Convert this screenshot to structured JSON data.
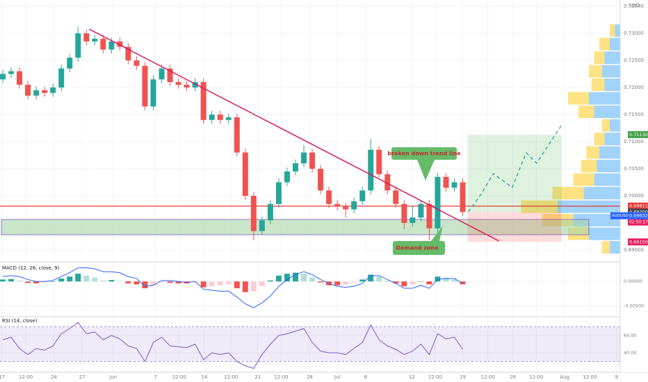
{
  "chart_data": {
    "type": "candlestick",
    "currency": "USD",
    "symbol": "AUDUSD",
    "countdown": "02:50:17",
    "open": [
      0.7215,
      0.7225,
      0.723,
      0.7205,
      0.7185,
      0.7195,
      0.719,
      0.72,
      0.7235,
      0.7255,
      0.73,
      0.7285,
      0.729,
      0.727,
      0.7285,
      0.7275,
      0.725,
      0.724,
      0.7165,
      0.7215,
      0.7235,
      0.721,
      0.7205,
      0.72,
      0.721,
      0.714,
      0.715,
      0.714,
      0.7145,
      0.708,
      0.7,
      0.6935,
      0.6955,
      0.6985,
      0.7025,
      0.7045,
      0.706,
      0.708,
      0.705,
      0.701,
      0.6985,
      0.698,
      0.6975,
      0.699,
      0.701,
      0.7085,
      0.704,
      0.701,
      0.6985,
      0.695,
      0.696,
      0.6985,
      0.694,
      0.7035,
      0.7015,
      0.7025
    ],
    "high": [
      0.7232,
      0.7237,
      0.7237,
      0.7212,
      0.7202,
      0.7202,
      0.7207,
      0.7242,
      0.7262,
      0.7312,
      0.7307,
      0.7297,
      0.7297,
      0.7292,
      0.7292,
      0.7282,
      0.7257,
      0.7247,
      0.7222,
      0.7242,
      0.7242,
      0.7217,
      0.7212,
      0.7217,
      0.7217,
      0.7157,
      0.7157,
      0.7152,
      0.7152,
      0.7087,
      0.7007,
      0.6962,
      0.6992,
      0.7032,
      0.7052,
      0.7067,
      0.7093,
      0.7087,
      0.7057,
      0.7017,
      0.6992,
      0.6987,
      0.6997,
      0.7017,
      0.7105,
      0.7092,
      0.7047,
      0.7017,
      0.6992,
      0.6982,
      0.6992,
      0.6992,
      0.7042,
      0.7042,
      0.7032,
      0.7032
    ],
    "low": [
      0.7208,
      0.7218,
      0.7198,
      0.7178,
      0.7178,
      0.7183,
      0.7183,
      0.7193,
      0.7228,
      0.7248,
      0.7278,
      0.7278,
      0.7263,
      0.7263,
      0.7268,
      0.7243,
      0.7233,
      0.7158,
      0.7158,
      0.7208,
      0.7203,
      0.7198,
      0.7193,
      0.7193,
      0.7133,
      0.7133,
      0.7133,
      0.7133,
      0.7073,
      0.6993,
      0.6918,
      0.6928,
      0.6948,
      0.6978,
      0.7018,
      0.7038,
      0.7053,
      0.7043,
      0.7003,
      0.6978,
      0.6973,
      0.696,
      0.6968,
      0.6983,
      0.7003,
      0.7033,
      0.7003,
      0.6978,
      0.6938,
      0.6943,
      0.6953,
      0.6918,
      0.6933,
      0.7008,
      0.7008,
      0.6963
    ],
    "close": [
      0.7225,
      0.723,
      0.7205,
      0.7185,
      0.7195,
      0.719,
      0.72,
      0.7235,
      0.7255,
      0.73,
      0.7285,
      0.729,
      0.727,
      0.7285,
      0.7275,
      0.725,
      0.724,
      0.7165,
      0.7215,
      0.7235,
      0.721,
      0.7205,
      0.72,
      0.721,
      0.714,
      0.715,
      0.714,
      0.7145,
      0.708,
      0.7,
      0.6935,
      0.6955,
      0.6985,
      0.7025,
      0.7045,
      0.706,
      0.708,
      0.705,
      0.701,
      0.6985,
      0.698,
      0.6975,
      0.699,
      0.701,
      0.7085,
      0.704,
      0.701,
      0.6985,
      0.695,
      0.696,
      0.6985,
      0.694,
      0.7035,
      0.7015,
      0.7025,
      0.697
    ],
    "up_color": "#26a69a",
    "down_color": "#ef5350",
    "xlim": [
      -0.333,
      73.83
    ],
    "xticks": [
      {
        "value": -0.1,
        "label": "17"
      },
      {
        "value": 2.75,
        "label": "12:00"
      },
      {
        "value": 6.1,
        "label": "24"
      },
      {
        "value": 9.5,
        "label": "27"
      },
      {
        "value": 13.2,
        "label": "Jun"
      },
      {
        "value": 18.25,
        "label": "7"
      },
      {
        "value": 21.1,
        "label": "12:00"
      },
      {
        "value": 24.1,
        "label": "14"
      },
      {
        "value": 27.3,
        "label": "12:00"
      },
      {
        "value": 30.5,
        "label": "21"
      },
      {
        "value": 33.3,
        "label": "12:00"
      },
      {
        "value": 36.7,
        "label": "28"
      },
      {
        "value": 40,
        "label": "Jul"
      },
      {
        "value": 43.4,
        "label": "6"
      },
      {
        "value": 48.9,
        "label": "12"
      },
      {
        "value": 51.7,
        "label": "12:00"
      },
      {
        "value": 55,
        "label": "19"
      },
      {
        "value": 58,
        "label": "12:00"
      },
      {
        "value": 61,
        "label": "26"
      },
      {
        "value": 63.8,
        "label": "12:00"
      },
      {
        "value": 67.2,
        "label": "Aug"
      },
      {
        "value": 70.2,
        "label": "12:00"
      },
      {
        "value": 73.4,
        "label": "9"
      }
    ],
    "ylim": [
      0.68846,
      0.73615
    ],
    "yticks": [
      {
        "value": 0.69,
        "label": "0.69000"
      },
      {
        "value": 0.7,
        "label": "0.70000"
      },
      {
        "value": 0.705,
        "label": "0.70500"
      },
      {
        "value": 0.71,
        "label": "0.71000"
      },
      {
        "value": 0.715,
        "label": "0.71500"
      },
      {
        "value": 0.72,
        "label": "0.72000"
      },
      {
        "value": 0.725,
        "label": "0.72500"
      },
      {
        "value": 0.73,
        "label": "0.73000"
      },
      {
        "value": 0.735,
        "label": "0.73500"
      }
    ],
    "grid": true,
    "trendline": {
      "x": [
        10.33,
        59.33
      ],
      "values": [
        0.73077,
        0.69167
      ],
      "color": "#d81b60"
    },
    "level_line": {
      "value": 0.69811,
      "color": "#e53935"
    },
    "demand_zone": {
      "x": [
        -0.17,
        70.08
      ],
      "values": [
        0.69564,
        0.69282
      ],
      "color": "#a5d6a7"
    },
    "position": {
      "x": [
        55.58,
        66.83
      ],
      "target": 0.7113,
      "entry": 0.697,
      "stop": 0.6915
    },
    "projection": {
      "x": [
        55.67,
        57.17,
        58.67,
        60.92,
        62.58,
        63.83,
        66.83
      ],
      "values": [
        0.69705,
        0.70026,
        0.7041,
        0.70154,
        0.70795,
        0.70603,
        0.71308
      ],
      "color": "#26a69a"
    },
    "annotations": [
      "broken down trend line",
      "Demand zone"
    ],
    "price_tags": [
      {
        "value": 0.7113,
        "label": "0.71130",
        "color": "#43a047"
      },
      {
        "value": 0.69811,
        "label": "0.69811",
        "color": "#e53935"
      },
      {
        "value": 0.697,
        "label": "0.69700",
        "color": "#434651"
      },
      {
        "value": 0.69632,
        "label": "0.69632",
        "color": "#2962ff"
      },
      {
        "value": 0.6915,
        "label": "0.69150",
        "color": "#e91e63"
      }
    ],
    "volume_profile": {
      "prices": [
        0.6905,
        0.693,
        0.6955,
        0.698,
        0.7005,
        0.703,
        0.7055,
        0.708,
        0.7105,
        0.713,
        0.7155,
        0.718,
        0.7205,
        0.723,
        0.7255,
        0.728,
        0.7305
      ],
      "buy": [
        20,
        60,
        90,
        120,
        70,
        50,
        45,
        40,
        30,
        20,
        50,
        60,
        30,
        35,
        30,
        20,
        10
      ],
      "sell": [
        15,
        40,
        60,
        70,
        60,
        40,
        30,
        25,
        20,
        15,
        30,
        40,
        25,
        25,
        20,
        20,
        10
      ],
      "buy_color": "#64b5f6",
      "sell_color": "#ffd54f"
    },
    "macd": {
      "title": "MACD (12, 26, close, 9)",
      "ylim": [
        -0.0071,
        0.0036
      ],
      "yticks": [
        {
          "value": 0,
          "label": "0.00000"
        },
        {
          "value": -0.005,
          "label": "-0.00500"
        }
      ],
      "histogram": [
        0.0004,
        0.0005,
        0.0002,
        -0.0003,
        -0.0004,
        -0.0002,
        0.0,
        0.0006,
        0.001,
        0.0016,
        0.0012,
        0.0008,
        0.0002,
        0.0003,
        0.0001,
        -0.0004,
        -0.0006,
        -0.0014,
        -0.0008,
        -0.0002,
        -0.0003,
        -0.0004,
        -0.0004,
        -0.0002,
        -0.0012,
        -0.001,
        -0.0008,
        -0.0006,
        -0.0014,
        -0.0022,
        -0.002,
        -0.001,
        0.0002,
        0.0012,
        0.0016,
        0.0018,
        0.0016,
        0.0008,
        -0.0002,
        -0.0008,
        -0.0008,
        -0.0006,
        -0.0002,
        0.0004,
        0.0014,
        0.001,
        0.0002,
        -0.0004,
        -0.001,
        -0.0006,
        0.0,
        -0.0006,
        0.001,
        0.0008,
        0.0004,
        -0.0006
      ],
      "values": [
        0.001,
        0.0012,
        0.001,
        0.0004,
        0.0,
        0.0,
        0.0002,
        0.001,
        0.0018,
        0.0028,
        0.0028,
        0.0026,
        0.002,
        0.002,
        0.0018,
        0.001,
        0.0006,
        -0.001,
        -0.0008,
        0.0002,
        0.0002,
        0.0,
        -0.0002,
        0.0,
        -0.0016,
        -0.0018,
        -0.002,
        -0.002,
        -0.0032,
        -0.0046,
        -0.0054,
        -0.0044,
        -0.003,
        -0.001,
        0.0004,
        0.0014,
        0.002,
        0.0014,
        0.0004,
        -0.0004,
        -0.001,
        -0.0012,
        -0.001,
        -0.0004,
        0.0012,
        0.0012,
        0.0004,
        -0.0004,
        -0.0014,
        -0.0014,
        -0.0008,
        -0.0014,
        0.0004,
        0.0006,
        0.0006,
        -0.0004
      ],
      "color": "#2962ff"
    },
    "rsi": {
      "title": "RSI (14, close)",
      "ylim": [
        20,
        80
      ],
      "yticks": [
        {
          "value": 40,
          "label": "40.00"
        },
        {
          "value": 60,
          "label": "60.00"
        }
      ],
      "band": [
        30,
        70
      ],
      "color": "#7e57c2",
      "values": [
        55,
        58,
        45,
        38,
        45,
        43,
        48,
        62,
        68,
        75,
        62,
        64,
        55,
        60,
        56,
        48,
        45,
        30,
        52,
        58,
        48,
        47,
        46,
        50,
        32,
        40,
        38,
        40,
        30,
        25,
        22,
        38,
        50,
        60,
        62,
        65,
        68,
        52,
        42,
        40,
        40,
        38,
        45,
        52,
        72,
        55,
        48,
        44,
        38,
        42,
        50,
        38,
        62,
        56,
        58,
        44
      ]
    }
  }
}
